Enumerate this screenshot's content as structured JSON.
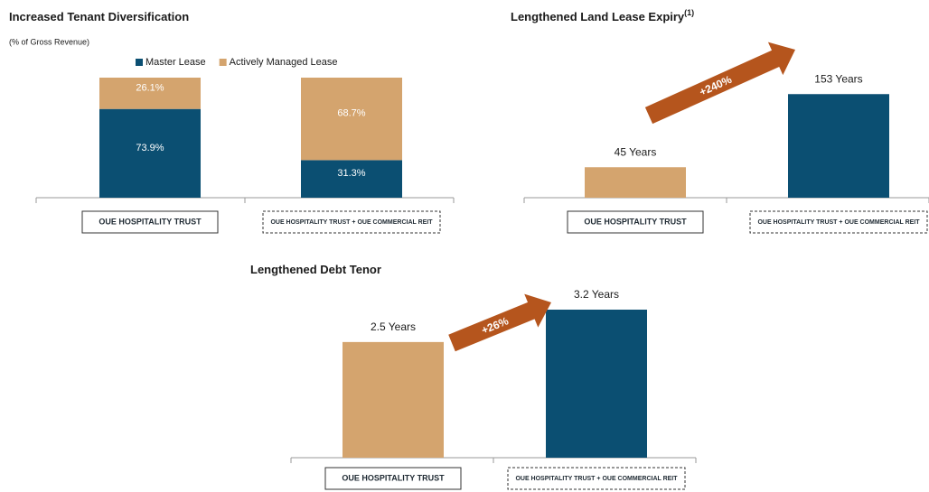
{
  "chart_data": [
    {
      "type": "stacked_bar",
      "title": "Increased Tenant Diversification",
      "subtitle": "(% of Gross Revenue)",
      "categories": [
        "OUE HOSPITALITY TRUST",
        "OUE HOSPITALITY TRUST + OUE COMMERCIAL REIT"
      ],
      "series": [
        {
          "name": "Master Lease",
          "color": "#0b4f72",
          "values": [
            73.9,
            31.3
          ],
          "value_labels": [
            "73.9%",
            "31.3%"
          ]
        },
        {
          "name": "Actively Managed Lease",
          "color": "#d4a46e",
          "values": [
            26.1,
            68.7
          ],
          "value_labels": [
            "26.1%",
            "68.7%"
          ]
        }
      ],
      "ylim": [
        0,
        100
      ]
    },
    {
      "type": "bar",
      "title": "Lengthened Land Lease Expiry",
      "title_note": "(1)",
      "categories": [
        "OUE HOSPITALITY TRUST",
        "OUE HOSPITALITY TRUST + OUE COMMERCIAL REIT"
      ],
      "values": [
        45,
        153
      ],
      "value_labels": [
        "45 Years",
        "153 Years"
      ],
      "colors": [
        "#d4a46e",
        "#0b4f72"
      ],
      "annotation": "+240%",
      "ylim": [
        0,
        200
      ]
    },
    {
      "type": "bar",
      "title": "Lengthened Debt Tenor",
      "categories": [
        "OUE HOSPITALITY TRUST",
        "OUE HOSPITALITY TRUST + OUE COMMERCIAL REIT"
      ],
      "values": [
        2.5,
        3.2
      ],
      "value_labels": [
        "2.5 Years",
        "3.2 Years"
      ],
      "colors": [
        "#d4a46e",
        "#0b4f72"
      ],
      "annotation": "+26%",
      "ylim": [
        0,
        4
      ]
    }
  ]
}
